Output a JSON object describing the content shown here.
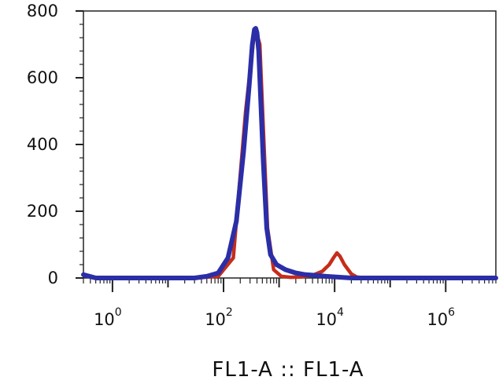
{
  "chart_data": {
    "type": "line",
    "title": "",
    "xlabel": "FL1-A :: FL1-A",
    "ylabel": "",
    "x_scale": "log",
    "xlim": [
      0.3,
      8000000
    ],
    "ylim": [
      0,
      800
    ],
    "grid": false,
    "x_ticks": [
      {
        "value": 1,
        "base": "10",
        "exp": "0"
      },
      {
        "value": 100,
        "base": "10",
        "exp": "2"
      },
      {
        "value": 10000,
        "base": "10",
        "exp": "4"
      },
      {
        "value": 1000000,
        "base": "10",
        "exp": "6"
      }
    ],
    "y_ticks": [
      0,
      200,
      400,
      600,
      800
    ],
    "series": [
      {
        "color": "#c62d1a",
        "x": [
          30,
          80,
          150,
          250,
          350,
          400,
          450,
          520,
          620,
          800,
          1100,
          1600,
          2500,
          4000,
          6000,
          8000,
          9500,
          11000,
          12500,
          15000,
          20000,
          25000,
          35000,
          50000
        ],
        "y": [
          0,
          5,
          60,
          500,
          720,
          730,
          700,
          450,
          150,
          25,
          5,
          2,
          3,
          8,
          20,
          40,
          60,
          75,
          65,
          40,
          12,
          3,
          0,
          0
        ]
      },
      {
        "color": "#2b2ea6",
        "x": [
          0.3,
          0.5,
          1,
          10,
          30,
          50,
          80,
          120,
          170,
          230,
          290,
          330,
          360,
          380,
          400,
          430,
          460,
          520,
          600,
          700,
          900,
          1300,
          2000,
          3000,
          4500,
          7000,
          20000,
          100000,
          1000000,
          8000000
        ],
        "y": [
          10,
          0,
          0,
          0,
          0,
          5,
          15,
          60,
          170,
          380,
          580,
          700,
          745,
          748,
          735,
          680,
          560,
          350,
          150,
          70,
          40,
          25,
          15,
          10,
          8,
          5,
          0,
          0,
          0,
          0
        ]
      }
    ]
  }
}
